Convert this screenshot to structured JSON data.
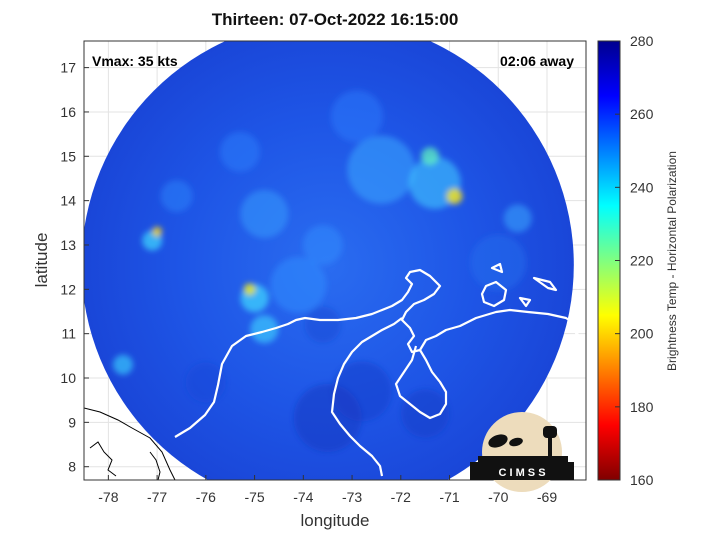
{
  "title": "Thirteen: 07-Oct-2022 16:15:00",
  "annotations": {
    "vmax": "Vmax: 35 kts",
    "time_away": "02:06 away"
  },
  "logo": {
    "text": "C I M S S"
  },
  "colors": {
    "scan_base": "#1e4fe0",
    "cold_spot": "#f2e000",
    "coastline": "#ffffff",
    "outside_coast": "#000000"
  },
  "chart_data": {
    "type": "heatmap",
    "title": "Thirteen: 07-Oct-2022 16:15:00",
    "xlabel": "longitude",
    "ylabel": "latitude",
    "xlim": [
      -78.5,
      -68.2
    ],
    "ylim": [
      7.7,
      17.6
    ],
    "xticks": [
      -78,
      -77,
      -76,
      -75,
      -74,
      -73,
      -72,
      -71,
      -70,
      -69
    ],
    "yticks": [
      8,
      9,
      10,
      11,
      12,
      13,
      14,
      15,
      16,
      17
    ],
    "grid": true,
    "colorbar": {
      "label": "Brightness Temp - Horizontal Polarization",
      "min": 160,
      "max": 280,
      "ticks": [
        160,
        180,
        200,
        220,
        240,
        260,
        280
      ],
      "colormap": "jet"
    },
    "scan_circle": {
      "center": [
        -73.5,
        12.55
      ],
      "radius_deg": 5.05
    }
  }
}
